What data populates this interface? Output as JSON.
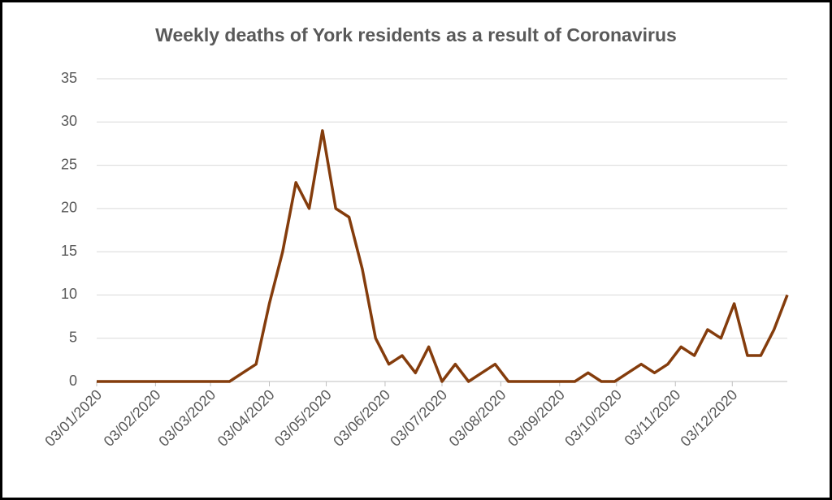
{
  "chart_data": {
    "type": "line",
    "title": "Weekly deaths of York residents as a result of Coronavirus",
    "x": [
      "03/01/2020",
      "10/01/2020",
      "17/01/2020",
      "24/01/2020",
      "31/01/2020",
      "07/02/2020",
      "14/02/2020",
      "21/02/2020",
      "28/02/2020",
      "06/03/2020",
      "13/03/2020",
      "20/03/2020",
      "27/03/2020",
      "03/04/2020",
      "10/04/2020",
      "17/04/2020",
      "24/04/2020",
      "01/05/2020",
      "08/05/2020",
      "15/05/2020",
      "22/05/2020",
      "29/05/2020",
      "05/06/2020",
      "12/06/2020",
      "19/06/2020",
      "26/06/2020",
      "03/07/2020",
      "10/07/2020",
      "17/07/2020",
      "24/07/2020",
      "31/07/2020",
      "07/08/2020",
      "14/08/2020",
      "21/08/2020",
      "28/08/2020",
      "04/09/2020",
      "11/09/2020",
      "18/09/2020",
      "25/09/2020",
      "02/10/2020",
      "09/10/2020",
      "16/10/2020",
      "23/10/2020",
      "30/10/2020",
      "06/11/2020",
      "13/11/2020",
      "20/11/2020",
      "27/11/2020",
      "04/12/2020",
      "11/12/2020",
      "18/12/2020",
      "25/12/2020",
      "01/01/2021"
    ],
    "series": [
      {
        "color": "#843c0c",
        "values": [
          0,
          0,
          0,
          0,
          0,
          0,
          0,
          0,
          0,
          0,
          0,
          1,
          2,
          9,
          15,
          23,
          20,
          29,
          20,
          19,
          13,
          5,
          2,
          3,
          1,
          4,
          0,
          2,
          0,
          1,
          2,
          0,
          0,
          0,
          0,
          0,
          0,
          1,
          0,
          0,
          1,
          2,
          1,
          2,
          4,
          3,
          6,
          5,
          9,
          3,
          3,
          6,
          10
        ]
      }
    ],
    "xlim": [
      "03/01/2020",
      "01/01/2021"
    ],
    "xticks": [
      "03/01/2020",
      "03/02/2020",
      "03/03/2020",
      "03/04/2020",
      "03/05/2020",
      "03/06/2020",
      "03/07/2020",
      "03/08/2020",
      "03/09/2020",
      "03/10/2020",
      "03/11/2020",
      "03/12/2020"
    ],
    "ylim": [
      0,
      35
    ],
    "yticks": [
      0,
      5,
      10,
      15,
      20,
      25,
      30,
      35
    ],
    "grid": true
  }
}
